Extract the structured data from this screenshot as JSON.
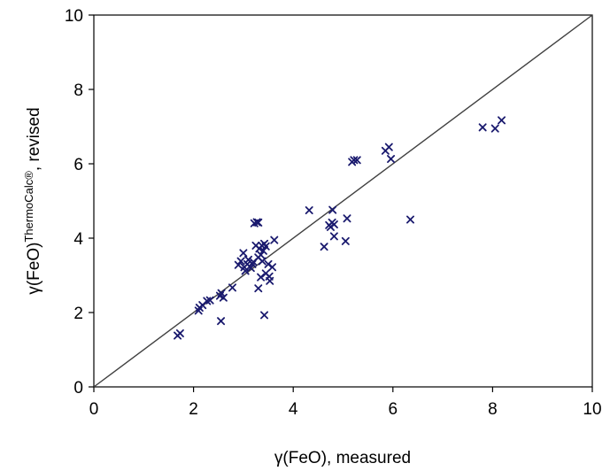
{
  "chart_data": {
    "type": "scatter",
    "xlabel": "γ(FeO), measured",
    "ylabel": {
      "main": "γ(FeO)",
      "superscript": "ThermoCalc®",
      "suffix": ", revised"
    },
    "xlim": [
      0,
      10
    ],
    "ylim": [
      0,
      10
    ],
    "x_ticks": [
      "0",
      "2",
      "4",
      "6",
      "8",
      "10"
    ],
    "y_ticks": [
      "0",
      "2",
      "4",
      "6",
      "8",
      "10"
    ],
    "grid": false,
    "legend": "none",
    "reference_line": {
      "type": "y=x",
      "from": [
        0,
        0
      ],
      "to": [
        10,
        10
      ],
      "color": "#404040"
    },
    "marker": {
      "shape": "x",
      "color": "#1a1a6e"
    },
    "series": [
      {
        "points": [
          [
            1.68,
            1.38
          ],
          [
            1.73,
            1.44
          ],
          [
            2.1,
            2.05
          ],
          [
            2.12,
            2.13
          ],
          [
            2.18,
            2.2
          ],
          [
            2.27,
            2.31
          ],
          [
            2.33,
            2.33
          ],
          [
            2.53,
            2.45
          ],
          [
            2.55,
            1.77
          ],
          [
            2.6,
            2.4
          ],
          [
            2.56,
            2.52
          ],
          [
            2.78,
            2.67
          ],
          [
            2.9,
            3.28
          ],
          [
            2.95,
            3.38
          ],
          [
            3.0,
            3.6
          ],
          [
            3.02,
            3.22
          ],
          [
            3.04,
            3.12
          ],
          [
            3.08,
            3.3
          ],
          [
            3.1,
            3.42
          ],
          [
            3.15,
            3.2
          ],
          [
            3.18,
            3.3
          ],
          [
            3.2,
            3.36
          ],
          [
            3.22,
            4.4
          ],
          [
            3.27,
            4.43
          ],
          [
            3.3,
            4.42
          ],
          [
            3.25,
            3.8
          ],
          [
            3.3,
            3.48
          ],
          [
            3.32,
            3.72
          ],
          [
            3.35,
            3.55
          ],
          [
            3.37,
            3.8
          ],
          [
            3.4,
            3.66
          ],
          [
            3.42,
            3.85
          ],
          [
            3.45,
            3.78
          ],
          [
            3.3,
            2.65
          ],
          [
            3.42,
            1.93
          ],
          [
            3.38,
            3.38
          ],
          [
            3.35,
            2.95
          ],
          [
            3.45,
            3.05
          ],
          [
            3.5,
            3.3
          ],
          [
            3.52,
            2.97
          ],
          [
            3.53,
            2.85
          ],
          [
            3.58,
            3.22
          ],
          [
            3.62,
            3.95
          ],
          [
            4.32,
            4.75
          ],
          [
            4.62,
            3.77
          ],
          [
            4.72,
            4.35
          ],
          [
            4.75,
            4.3
          ],
          [
            4.78,
            4.42
          ],
          [
            4.79,
            4.76
          ],
          [
            4.82,
            4.37
          ],
          [
            4.82,
            4.05
          ],
          [
            5.05,
            3.92
          ],
          [
            5.08,
            4.53
          ],
          [
            5.18,
            6.05
          ],
          [
            5.22,
            6.1
          ],
          [
            5.28,
            6.1
          ],
          [
            5.85,
            6.35
          ],
          [
            5.92,
            6.45
          ],
          [
            5.96,
            6.13
          ],
          [
            6.35,
            4.5
          ],
          [
            7.8,
            6.98
          ],
          [
            8.05,
            6.95
          ],
          [
            8.18,
            7.17
          ]
        ]
      }
    ]
  }
}
